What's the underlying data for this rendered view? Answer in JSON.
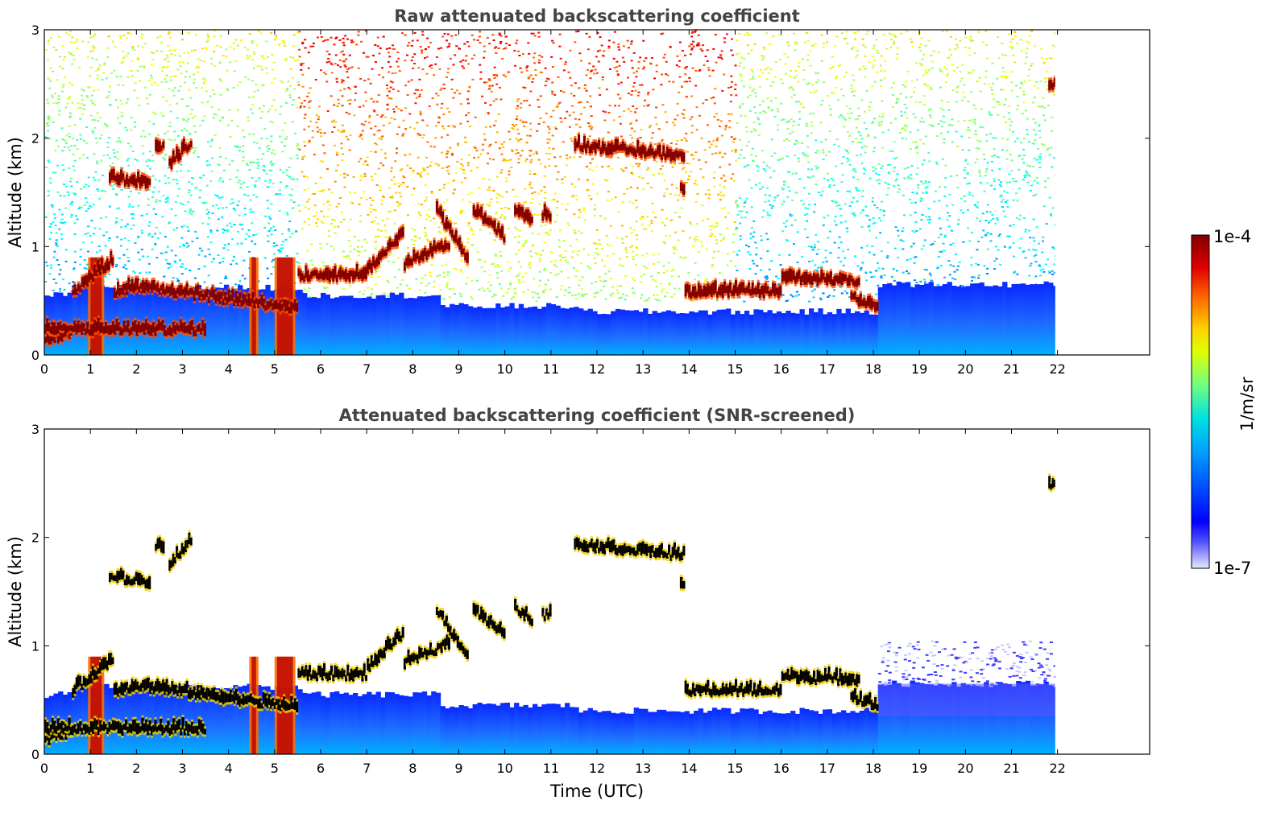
{
  "chart_data": [
    {
      "type": "heatmap",
      "title": "Raw attenuated backscattering coefficient",
      "xlabel": "",
      "ylabel": "Altitude (km)",
      "xlim": [
        0,
        24
      ],
      "ylim": [
        0,
        3
      ],
      "xticks": [
        "0",
        "1",
        "2",
        "3",
        "4",
        "5",
        "6",
        "7",
        "8",
        "9",
        "10",
        "11",
        "12",
        "13",
        "14",
        "15",
        "16",
        "17",
        "18",
        "19",
        "20",
        "21",
        "22"
      ],
      "yticks": [
        "0",
        "1",
        "2",
        "3"
      ],
      "data_end_hour": 21.95,
      "screened": false,
      "layers": [
        {
          "t0": 0.0,
          "t1": 0.6,
          "z0": 0.1,
          "z1": 0.18
        },
        {
          "t0": 0.6,
          "t1": 1.5,
          "z0": 0.55,
          "z1": 0.85
        },
        {
          "t0": 1.5,
          "t1": 2.0,
          "z0": 0.55,
          "z1": 0.6
        },
        {
          "t0": 2.0,
          "t1": 4.5,
          "z0": 0.6,
          "z1": 0.45
        },
        {
          "t0": 4.5,
          "t1": 5.5,
          "z0": 0.45,
          "z1": 0.4
        },
        {
          "t0": 5.5,
          "t1": 7.0,
          "z0": 0.7,
          "z1": 0.7
        },
        {
          "t0": 7.0,
          "t1": 7.8,
          "z0": 0.75,
          "z1": 1.1
        },
        {
          "t0": 7.8,
          "t1": 8.8,
          "z0": 0.8,
          "z1": 1.0
        },
        {
          "t0": 8.5,
          "t1": 9.2,
          "z0": 1.3,
          "z1": 0.85
        },
        {
          "t0": 9.3,
          "t1": 10.0,
          "z0": 1.3,
          "z1": 1.05
        },
        {
          "t0": 10.2,
          "t1": 10.6,
          "z0": 1.3,
          "z1": 1.2
        },
        {
          "t0": 10.8,
          "t1": 11.0,
          "z0": 1.25,
          "z1": 1.25
        },
        {
          "t0": 1.4,
          "t1": 2.3,
          "z0": 1.6,
          "z1": 1.55
        },
        {
          "t0": 2.4,
          "t1": 2.6,
          "z0": 1.88,
          "z1": 1.88
        },
        {
          "t0": 2.7,
          "t1": 3.2,
          "z0": 1.72,
          "z1": 1.95
        },
        {
          "t0": 11.5,
          "t1": 13.9,
          "z0": 1.9,
          "z1": 1.8
        },
        {
          "t0": 13.8,
          "t1": 13.9,
          "z0": 1.5,
          "z1": 1.5
        },
        {
          "t0": 13.9,
          "t1": 16.0,
          "z0": 0.55,
          "z1": 0.55
        },
        {
          "t0": 16.0,
          "t1": 17.7,
          "z0": 0.68,
          "z1": 0.65
        },
        {
          "t0": 17.5,
          "t1": 18.1,
          "z0": 0.5,
          "z1": 0.4
        },
        {
          "t0": 21.8,
          "t1": 21.95,
          "z0": 2.45,
          "z1": 2.45
        },
        {
          "t0": 0.0,
          "t1": 3.5,
          "z0": 0.2,
          "z1": 0.2
        }
      ],
      "columns": [
        {
          "t0": 0.95,
          "t1": 1.3
        },
        {
          "t0": 4.45,
          "t1": 4.65
        },
        {
          "t0": 5.0,
          "t1": 5.45
        }
      ]
    },
    {
      "type": "heatmap",
      "title": "Attenuated backscattering coefficient (SNR-screened)",
      "xlabel": "Time (UTC)",
      "ylabel": "Altitude (km)",
      "xlim": [
        0,
        24
      ],
      "ylim": [
        0,
        3
      ],
      "xticks": [
        "0",
        "1",
        "2",
        "3",
        "4",
        "5",
        "6",
        "7",
        "8",
        "9",
        "10",
        "11",
        "12",
        "13",
        "14",
        "15",
        "16",
        "17",
        "18",
        "19",
        "20",
        "21",
        "22"
      ],
      "yticks": [
        "0",
        "1",
        "2",
        "3"
      ],
      "data_end_hour": 21.95,
      "screened": true
    }
  ],
  "colorbar": {
    "label": "1/m/sr",
    "max_label": "1e-4",
    "min_label": "1e-7",
    "scale": "log",
    "colormap": "jet",
    "range": [
      1e-07,
      0.0001
    ]
  },
  "colors": {
    "cloud": "#800000",
    "cloud_screened": "#000000",
    "boundary_layer": "#1e50ff",
    "background": "#ffffff"
  }
}
